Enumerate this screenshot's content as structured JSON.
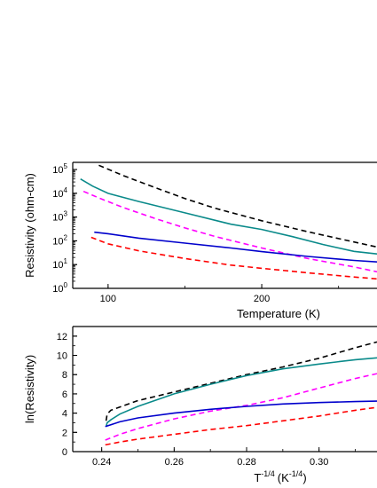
{
  "chart_data": [
    {
      "type": "line",
      "xlabel": "Temperature (K)",
      "ylabel": "Resistivity (ohm-cm)",
      "y_scale": "log",
      "xlim": [
        77,
        275
      ],
      "ylim": [
        1,
        200000
      ],
      "x_ticks": [
        {
          "v": 100,
          "label": "100"
        },
        {
          "v": 200,
          "label": "200"
        }
      ],
      "y_ticks": [
        {
          "v": 1,
          "base": "10",
          "exp": "0"
        },
        {
          "v": 10,
          "base": "10",
          "exp": "1"
        },
        {
          "v": 100,
          "base": "10",
          "exp": "2"
        },
        {
          "v": 1000,
          "base": "10",
          "exp": "3"
        },
        {
          "v": 10000,
          "base": "10",
          "exp": "4"
        },
        {
          "v": 100000,
          "base": "10",
          "exp": "5"
        }
      ],
      "grid": false,
      "series": [
        {
          "color": "#000000",
          "dash": true,
          "points": [
            [
              94,
              150000
            ],
            [
              110,
              55000
            ],
            [
              130,
              18000
            ],
            [
              150,
              6000
            ],
            [
              170,
              2300
            ],
            [
              200,
              700
            ],
            [
              230,
              240
            ],
            [
              260,
              90
            ],
            [
              275,
              55
            ]
          ]
        },
        {
          "color": "#0a8a8a",
          "dash": false,
          "points": [
            [
              82,
              40000
            ],
            [
              90,
              20000
            ],
            [
              100,
              10000
            ],
            [
              120,
              4500
            ],
            [
              150,
              1500
            ],
            [
              180,
              500
            ],
            [
              200,
              300
            ],
            [
              220,
              150
            ],
            [
              240,
              70
            ],
            [
              260,
              36
            ],
            [
              275,
              28
            ]
          ]
        },
        {
          "color": "#ff00ff",
          "dash": true,
          "points": [
            [
              84,
              12000
            ],
            [
              95,
              6000
            ],
            [
              110,
              2500
            ],
            [
              130,
              900
            ],
            [
              150,
              350
            ],
            [
              170,
              150
            ],
            [
              200,
              50
            ],
            [
              230,
              18
            ],
            [
              260,
              8
            ],
            [
              275,
              5
            ]
          ]
        },
        {
          "color": "#0000cc",
          "dash": false,
          "points": [
            [
              91,
              230
            ],
            [
              100,
              200
            ],
            [
              120,
              130
            ],
            [
              150,
              80
            ],
            [
              180,
              50
            ],
            [
              200,
              35
            ],
            [
              230,
              22
            ],
            [
              260,
              15
            ],
            [
              275,
              13
            ]
          ]
        },
        {
          "color": "#ff0000",
          "dash": true,
          "points": [
            [
              89,
              140
            ],
            [
              100,
              75
            ],
            [
              120,
              38
            ],
            [
              150,
              18
            ],
            [
              180,
              9.5
            ],
            [
              200,
              7
            ],
            [
              230,
              4.5
            ],
            [
              260,
              3
            ],
            [
              275,
              2.5
            ]
          ]
        }
      ]
    },
    {
      "type": "line",
      "xlabel_base": "T",
      "xlabel_exp": "-1/4",
      "xlabel_unit_base": "(K",
      "xlabel_unit_exp": "-1/4",
      "xlabel_close": ")",
      "ylabel": "ln(Resistivity)",
      "xlim": [
        0.232,
        0.316
      ],
      "ylim": [
        0,
        13
      ],
      "x_ticks": [
        {
          "v": 0.24,
          "label": "0.24"
        },
        {
          "v": 0.26,
          "label": "0.26"
        },
        {
          "v": 0.28,
          "label": "0.28"
        },
        {
          "v": 0.3,
          "label": "0.30"
        }
      ],
      "y_ticks": [
        {
          "v": 0,
          "label": "0"
        },
        {
          "v": 2,
          "label": "2"
        },
        {
          "v": 4,
          "label": "4"
        },
        {
          "v": 6,
          "label": "6"
        },
        {
          "v": 8,
          "label": "8"
        },
        {
          "v": 10,
          "label": "10"
        },
        {
          "v": 12,
          "label": "12"
        }
      ],
      "grid": false,
      "series": [
        {
          "color": "#000000",
          "dash": true,
          "points": [
            [
              0.2412,
              3.2
            ],
            [
              0.2415,
              3.9
            ],
            [
              0.2425,
              4.3
            ],
            [
              0.25,
              5.3
            ],
            [
              0.26,
              6.2
            ],
            [
              0.27,
              7.1
            ],
            [
              0.28,
              8.0
            ],
            [
              0.29,
              8.8
            ],
            [
              0.3,
              9.7
            ],
            [
              0.31,
              10.8
            ],
            [
              0.316,
              11.4
            ]
          ]
        },
        {
          "color": "#0a8a8a",
          "dash": false,
          "points": [
            [
              0.2412,
              2.6
            ],
            [
              0.2415,
              3.0
            ],
            [
              0.2425,
              3.3
            ],
            [
              0.245,
              3.9
            ],
            [
              0.25,
              4.7
            ],
            [
              0.26,
              6.0
            ],
            [
              0.27,
              7.0
            ],
            [
              0.28,
              7.9
            ],
            [
              0.29,
              8.6
            ],
            [
              0.3,
              9.1
            ],
            [
              0.31,
              9.55
            ],
            [
              0.316,
              9.75
            ]
          ]
        },
        {
          "color": "#ff00ff",
          "dash": true,
          "points": [
            [
              0.241,
              1.2
            ],
            [
              0.245,
              1.8
            ],
            [
              0.25,
              2.4
            ],
            [
              0.26,
              3.4
            ],
            [
              0.27,
              4.2
            ],
            [
              0.28,
              4.8
            ],
            [
              0.29,
              5.6
            ],
            [
              0.3,
              6.6
            ],
            [
              0.31,
              7.6
            ],
            [
              0.316,
              8.1
            ]
          ]
        },
        {
          "color": "#0000cc",
          "dash": false,
          "points": [
            [
              0.241,
              2.6
            ],
            [
              0.245,
              3.1
            ],
            [
              0.25,
              3.5
            ],
            [
              0.26,
              4.0
            ],
            [
              0.27,
              4.4
            ],
            [
              0.28,
              4.7
            ],
            [
              0.29,
              4.95
            ],
            [
              0.3,
              5.1
            ],
            [
              0.31,
              5.2
            ],
            [
              0.316,
              5.25
            ]
          ]
        },
        {
          "color": "#ff0000",
          "dash": true,
          "points": [
            [
              0.241,
              0.7
            ],
            [
              0.245,
              1.0
            ],
            [
              0.25,
              1.3
            ],
            [
              0.26,
              1.8
            ],
            [
              0.27,
              2.3
            ],
            [
              0.28,
              2.7
            ],
            [
              0.29,
              3.2
            ],
            [
              0.3,
              3.7
            ],
            [
              0.31,
              4.3
            ],
            [
              0.316,
              4.6
            ]
          ]
        }
      ]
    }
  ]
}
